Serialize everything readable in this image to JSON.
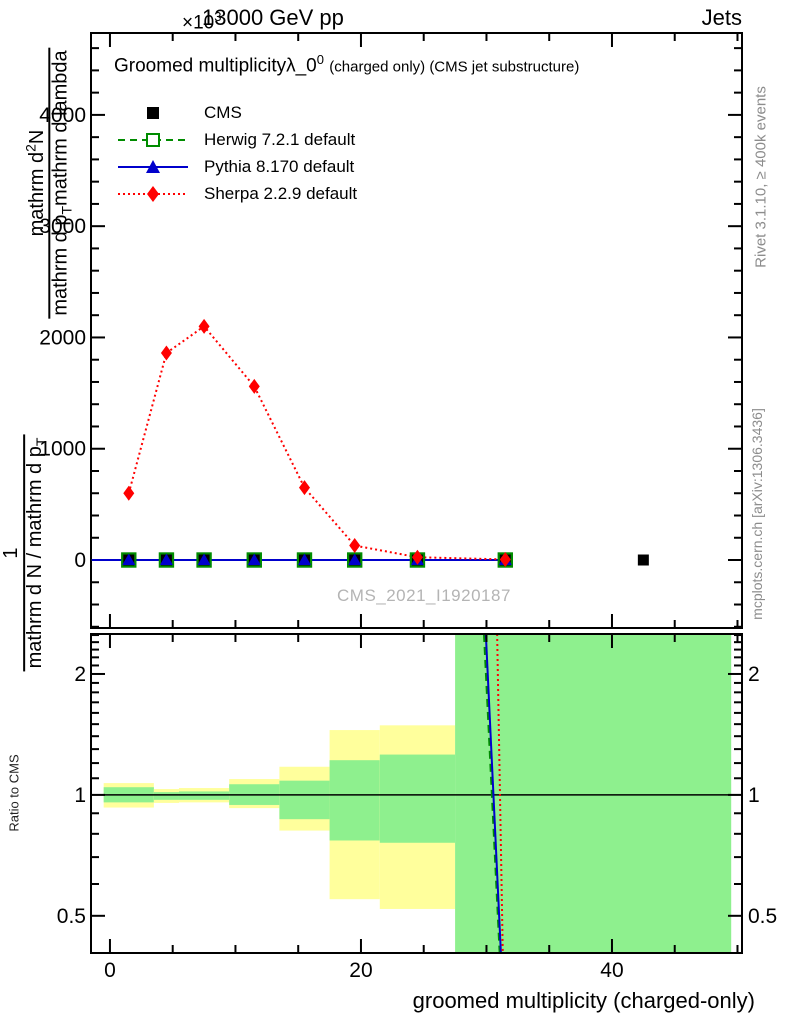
{
  "header": {
    "energy": "13000 GeV pp",
    "topic": "Jets",
    "y_multiplier_base": "×10",
    "y_multiplier_exp": "3"
  },
  "title": {
    "main": "Groomed multiplicity",
    "lambda": "λ_0",
    "lambda_sup": "0",
    "suffix": "(charged only) (CMS jet substructure)"
  },
  "legend": [
    {
      "label": "CMS",
      "marker": "filled-square",
      "color": "#000000",
      "line": "none"
    },
    {
      "label": "Herwig 7.2.1 default",
      "marker": "open-square",
      "color": "#008c00",
      "line": "dashed"
    },
    {
      "label": "Pythia 8.170 default",
      "marker": "filled-triangle",
      "color": "#0000cc",
      "line": "solid"
    },
    {
      "label": "Sherpa 2.2.9 default",
      "marker": "filled-diamond",
      "color": "#ff0000",
      "line": "dotted"
    }
  ],
  "y_axis_label": {
    "frac_upper": {
      "num_pre": "mathrm d",
      "num_sup": "2",
      "num_post": "N",
      "den_pre": "mathrm d p",
      "den_sub": "T",
      "den_post": "mathrm d lambda"
    },
    "frac_lower": {
      "num": "1",
      "den_pre": "mathrm d N / mathrm d p",
      "den_sub": "T"
    }
  },
  "ratio_axis_label": "Ratio to CMS",
  "side_notes": {
    "top": "Rivet 3.1.10, ≥ 400k events",
    "bottom": "mcplots.cern.ch [arXiv:1306.3436]"
  },
  "watermark": "CMS_2021_I1920187",
  "x_axis_label": "groomed multiplicity (charged-only)",
  "chart_data": {
    "type": "line",
    "title": "Groomed multiplicity λ_0^0 (charged only) (CMS jet substructure)",
    "xlabel": "groomed multiplicity (charged-only)",
    "xlim": [
      -1.51,
      50.36
    ],
    "x_major_ticks": [
      0,
      20,
      40
    ],
    "x_tick_labels": [
      "0",
      "20",
      "40"
    ],
    "x_minor_step": 5,
    "colors": {
      "cms": "#000000",
      "herwig": "#008c00",
      "pythia": "#0000cc",
      "sherpa": "#ff0000",
      "band_yellow": "#ffff9c",
      "band_green": "#8ef08e"
    },
    "main_panel": {
      "ylabel": "1/(dN/dp_T) d^2N/(dp_T dlambda)",
      "y_multiplier": "×10^3",
      "ylim": [
        -611,
        4736
      ],
      "y_major_ticks": [
        0,
        1000,
        2000,
        3000,
        4000
      ],
      "y_tick_labels": [
        "0",
        "1000",
        "2000",
        "3000",
        "4000"
      ],
      "y_minor_step": 200,
      "series": [
        {
          "name": "CMS",
          "color": "#000000",
          "marker": "filled-square",
          "line": "none",
          "x": [
            1.5,
            4.5,
            7.5,
            11.5,
            15.5,
            19.5,
            24.5,
            31.5,
            42.5
          ],
          "y": [
            0,
            0,
            0,
            0,
            0,
            0,
            0,
            0,
            0
          ]
        },
        {
          "name": "Herwig 7.2.1 default",
          "color": "#008c00",
          "marker": "open-square",
          "line": "dashed",
          "line_x0": -1.45,
          "x": [
            1.5,
            4.5,
            7.5,
            11.5,
            15.5,
            19.5,
            24.5,
            31.5
          ],
          "y": [
            0,
            0,
            0,
            0,
            0,
            0,
            0,
            0
          ]
        },
        {
          "name": "Pythia 8.170 default",
          "color": "#0000cc",
          "marker": "filled-triangle",
          "line": "solid",
          "line_x0": -1.45,
          "x": [
            1.5,
            4.5,
            7.5,
            11.5,
            15.5,
            19.5,
            24.5,
            31.5
          ],
          "y": [
            0,
            0,
            0,
            0,
            0,
            0,
            0,
            0
          ]
        },
        {
          "name": "Sherpa 2.2.9 default",
          "color": "#ff0000",
          "marker": "filled-diamond",
          "line": "dotted",
          "x": [
            1.5,
            4.5,
            7.5,
            11.5,
            15.5,
            19.5,
            24.5,
            31.5
          ],
          "y": [
            600,
            1860,
            2100,
            1560,
            650,
            130,
            25,
            5
          ]
        }
      ]
    },
    "ratio_panel": {
      "ylabel": "Ratio to CMS",
      "scale": "log",
      "ylim": [
        0.404,
        2.515
      ],
      "y_major_ticks": [
        0.5,
        1,
        2
      ],
      "y_tick_labels": [
        "0.5",
        "1",
        "2"
      ],
      "y_minor_ticks": [
        0.6,
        0.7,
        0.8,
        0.9,
        1.1,
        1.2,
        1.3,
        1.4,
        1.5,
        1.6,
        1.7,
        1.8,
        1.9,
        2.1,
        2.2,
        2.3,
        2.4,
        2.5
      ],
      "reference_line": 1,
      "bands": [
        {
          "x0": -0.5,
          "x1": 3.5,
          "yellow": [
            0.93,
            1.07
          ],
          "green": [
            0.958,
            1.045
          ]
        },
        {
          "x0": 3.5,
          "x1": 5.5,
          "yellow": [
            0.955,
            1.034
          ],
          "green": [
            0.972,
            1.016
          ]
        },
        {
          "x0": 5.5,
          "x1": 9.5,
          "yellow": [
            0.958,
            1.04
          ],
          "green": [
            0.972,
            1.02
          ]
        },
        {
          "x0": 9.5,
          "x1": 13.5,
          "yellow": [
            0.927,
            1.095
          ],
          "green": [
            0.944,
            1.063
          ]
        },
        {
          "x0": 13.5,
          "x1": 17.5,
          "yellow": [
            0.815,
            1.175
          ],
          "green": [
            0.87,
            1.085
          ]
        },
        {
          "x0": 17.5,
          "x1": 21.5,
          "yellow": [
            0.55,
            1.45
          ],
          "green": [
            0.77,
            1.22
          ]
        },
        {
          "x0": 21.5,
          "x1": 27.5,
          "yellow": [
            0.52,
            1.49
          ],
          "green": [
            0.76,
            1.26
          ]
        },
        {
          "x0": 27.5,
          "x1": 49.5,
          "yellow": null,
          "green": [
            0.404,
            2.515
          ]
        }
      ],
      "lines": [
        {
          "name": "Herwig 7.2.1 default",
          "color": "#008c00",
          "style": "dashed",
          "points": [
            [
              29.8,
              2.515
            ],
            [
              31.05,
              0.404
            ]
          ]
        },
        {
          "name": "Pythia 8.170 default",
          "color": "#0000cc",
          "style": "solid",
          "points": [
            [
              29.95,
              2.515
            ],
            [
              31.15,
              0.404
            ]
          ]
        },
        {
          "name": "Sherpa 2.2.9 default",
          "color": "#ff0000",
          "style": "dotted",
          "points": [
            [
              30.85,
              2.515
            ],
            [
              31.3,
              0.404
            ]
          ]
        }
      ]
    }
  }
}
